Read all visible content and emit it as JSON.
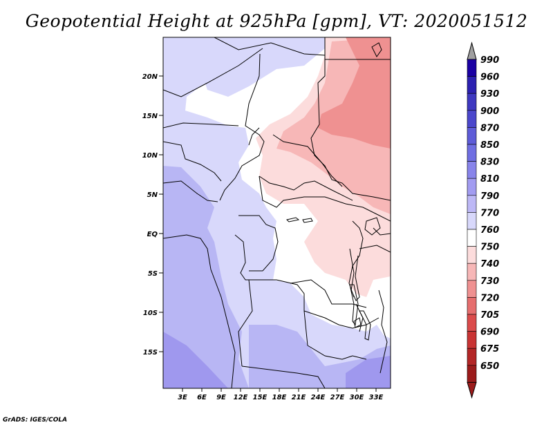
{
  "title": "Geopotential Height at 925hPa [gpm], VT: 2020051512",
  "footer": "GrADS: IGES/COLA",
  "map": {
    "lat_labels": [
      "20N",
      "15N",
      "10N",
      "5N",
      "EQ",
      "5S",
      "10S",
      "15S"
    ],
    "lon_labels": [
      "3E",
      "6E",
      "9E",
      "12E",
      "15E",
      "18E",
      "21E",
      "24E",
      "27E",
      "30E",
      "33E"
    ],
    "colors": {
      "bg": "#ffffff",
      "border": "#000000",
      "c790": "#d6d8fb",
      "c810": "#b3b3f5",
      "c830": "#9f97ee",
      "c750": "#fcdede",
      "c740": "#f7b4b4",
      "c730": "#ef8e8e"
    }
  },
  "colorbar": {
    "levels": [
      "990",
      "960",
      "930",
      "900",
      "870",
      "850",
      "830",
      "810",
      "790",
      "770",
      "760",
      "750",
      "740",
      "730",
      "720",
      "705",
      "690",
      "675",
      "650"
    ],
    "colors": [
      "#1a00a3",
      "#2c21b1",
      "#3e38c0",
      "#4b47cc",
      "#5e5cd8",
      "#6f6ee2",
      "#8884ea",
      "#a29cf1",
      "#bdb8f6",
      "#d8d8fb",
      "#ffffff",
      "#fcdcdc",
      "#f7b7b7",
      "#ef9191",
      "#e66e6e",
      "#db4b4b",
      "#c93434",
      "#b32626",
      "#9b1b1b"
    ],
    "top_cap_color": "#a0a0a0",
    "bottom_cap_color": "#9b1b1b"
  }
}
